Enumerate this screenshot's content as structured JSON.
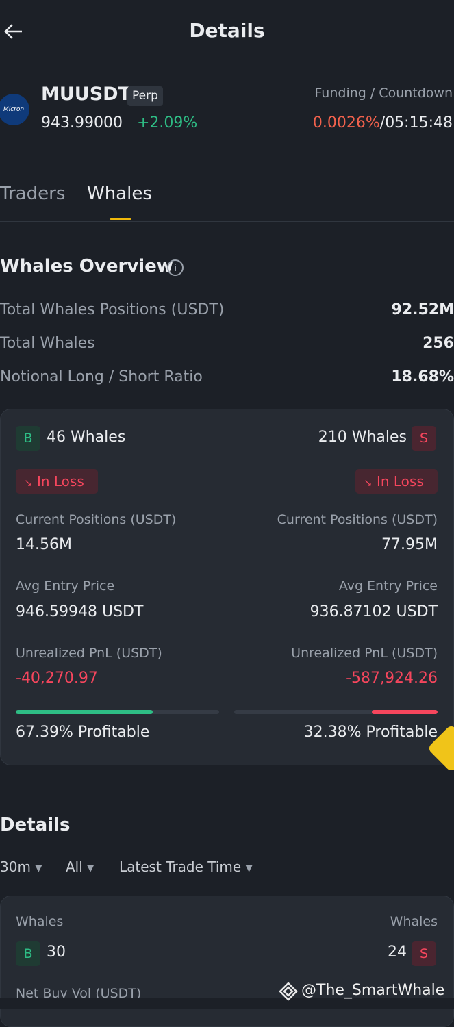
{
  "header": {
    "title": "Details"
  },
  "symbol": {
    "logo": "Micron",
    "name": "MUUSDT",
    "tag": "Perp",
    "price": "943.99000",
    "change": "+2.09%",
    "funding_label": "Funding / Countdown",
    "funding_rate": "0.0026%",
    "separator": "/",
    "countdown": "05:15:48"
  },
  "tabs": [
    "Traders",
    "Whales"
  ],
  "overview": {
    "title": "Whales Overview",
    "rows": [
      [
        "Total Whales Positions (USDT)",
        "92.52M"
      ],
      [
        "Total Whales",
        "256"
      ],
      [
        "Notional Long / Short Ratio",
        "18.68%"
      ]
    ]
  },
  "long": {
    "badge": "B",
    "whales": "46 Whales",
    "status": "In Loss",
    "positions_label": "Current Positions (USDT)",
    "positions": "14.56M",
    "entry_label": "Avg Entry Price",
    "entry": "946.59948 USDT",
    "pnl_label": "Unrealized PnL (USDT)",
    "pnl": "-40,270.97",
    "profitable": 67.39,
    "profitable_label": "67.39% Profitable"
  },
  "short": {
    "badge": "S",
    "whales": "210 Whales",
    "status": "In Loss",
    "positions_label": "Current Positions (USDT)",
    "positions": "77.95M",
    "entry_label": "Avg Entry Price",
    "entry": "936.87102 USDT",
    "pnl_label": "Unrealized PnL (USDT)",
    "pnl": "-587,924.26",
    "profitable": 32.38,
    "profitable_label": "32.38% Profitable"
  },
  "details": {
    "title": "Details",
    "filters": [
      "30m",
      "All",
      "Latest Trade Time"
    ],
    "card": {
      "long_label": "Whales",
      "long_badge": "B",
      "long_count": "30",
      "short_label": "Whales",
      "short_badge": "S",
      "short_count": "24",
      "net_label": "Net Buy Vol (USDT)"
    }
  },
  "watermark": "@The_SmartWhale"
}
